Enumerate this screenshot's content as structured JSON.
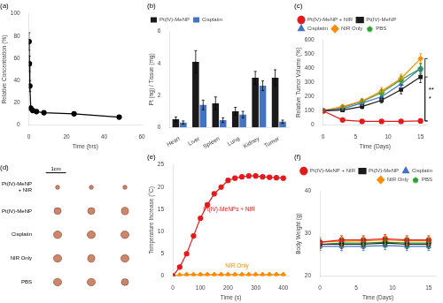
{
  "chart_data": [
    {
      "type": "line",
      "title": "(a)",
      "xlabel": "Time (hrs)",
      "ylabel": "Relative Concentration (%)",
      "x": [
        0.083,
        0.25,
        0.5,
        1,
        2,
        4,
        8,
        24,
        48
      ],
      "values": [
        75,
        55,
        35,
        15,
        13,
        12,
        11,
        10,
        7
      ],
      "errors": [
        8,
        7,
        5,
        2,
        1.5,
        1.5,
        1.5,
        1.5,
        1.5
      ],
      "color": "black",
      "marker": "circle",
      "line_style": "solid",
      "xlim": [
        0,
        60
      ],
      "xticks": [
        0,
        20,
        40,
        60
      ],
      "ylim": [
        0,
        100
      ],
      "yticks": [
        0,
        20,
        40,
        60,
        80,
        100
      ],
      "grid": false
    },
    {
      "type": "bar",
      "title": "(b)",
      "ylabel": "Pt (ng) / Tissue (mg)",
      "categories": [
        "Heart",
        "Liver",
        "Spleen",
        "Lung",
        "Kidney",
        "Tumor"
      ],
      "series": [
        {
          "name": "Pt(IV)-MeNP",
          "color": "#1a1a1a",
          "values": [
            0.5,
            4.1,
            1.5,
            1.0,
            3.1,
            3.1
          ],
          "errors": [
            0.15,
            0.7,
            0.4,
            0.25,
            0.4,
            0.5
          ]
        },
        {
          "name": "Cisplatin",
          "color": "#4472c4",
          "values": [
            0.3,
            1.4,
            0.45,
            0.8,
            2.6,
            0.35
          ],
          "errors": [
            0.1,
            0.3,
            0.15,
            0.2,
            0.3,
            0.1
          ]
        }
      ],
      "ylim": [
        0,
        6
      ],
      "yticks": [
        0,
        2,
        4,
        6
      ],
      "legend": "upper left",
      "grid": false
    },
    {
      "type": "line",
      "title": "(c)",
      "xlabel": "Time (Days)",
      "ylabel": "Relative Tumor Volume (%)",
      "x": [
        0,
        3,
        6,
        9,
        12,
        15
      ],
      "series": [
        {
          "name": "Pt(IV)-MeNP + NIR",
          "color": "#e31a1c",
          "marker": "circle",
          "line_style": "solid",
          "values": [
            100,
            35,
            25,
            25,
            25,
            28
          ],
          "errors": [
            5,
            5,
            4,
            4,
            4,
            5
          ]
        },
        {
          "name": "Pt(IV)-MeNP",
          "color": "#1a1a1a",
          "marker": "square",
          "line_style": "solid",
          "values": [
            100,
            105,
            130,
            175,
            250,
            340
          ],
          "errors": [
            8,
            10,
            15,
            20,
            30,
            40
          ]
        },
        {
          "name": "Cisplatin",
          "color": "#4472c4",
          "marker": "triangle",
          "line_style": "solid",
          "values": [
            100,
            115,
            155,
            200,
            290,
            400
          ],
          "errors": [
            8,
            12,
            18,
            22,
            28,
            35
          ]
        },
        {
          "name": "NIR Only",
          "color": "#ff8c00",
          "marker": "diamond",
          "line_style": "solid",
          "values": [
            100,
            130,
            170,
            240,
            330,
            470
          ],
          "errors": [
            8,
            12,
            18,
            25,
            30,
            35
          ]
        },
        {
          "name": "PBS",
          "color": "#2ca02c",
          "marker": "pentagon",
          "line_style": "solid",
          "values": [
            100,
            125,
            165,
            230,
            320,
            400
          ],
          "errors": [
            8,
            12,
            18,
            22,
            28,
            35
          ]
        }
      ],
      "annotations": [
        {
          "text": "*",
          "series": [
            "Pt(IV)-MeNP + NIR",
            "Pt(IV)-MeNP"
          ]
        },
        {
          "text": "**",
          "series": [
            "Pt(IV)-MeNP + NIR",
            "NIR Only"
          ]
        }
      ],
      "xlim": [
        0,
        16
      ],
      "xticks": [
        0,
        5,
        10,
        15
      ],
      "ylim": [
        0,
        600
      ],
      "yticks": [
        0,
        100,
        200,
        300,
        400,
        500,
        600
      ],
      "legend": "upper left",
      "grid": false
    },
    {
      "type": "image",
      "title": "(d)",
      "categories": [
        "Pt(IV)-MeNP\n+ NIR",
        "Pt(IV)-MeNP",
        "Cisplatin",
        "NIR Only",
        "PBS"
      ],
      "sizes": [
        [
          [
            0.04,
            0.035
          ],
          [
            0.04,
            0.035
          ],
          [
            0.04,
            0.035
          ]
        ],
        [
          [
            0.07,
            0.056
          ],
          [
            0.07,
            0.056
          ],
          [
            0.07,
            0.063
          ]
        ],
        [
          [
            0.08,
            0.063
          ],
          [
            0.08,
            0.063
          ],
          [
            0.08,
            0.063
          ]
        ],
        [
          [
            0.08,
            0.063
          ],
          [
            0.07,
            0.063
          ],
          [
            0.08,
            0.063
          ]
        ],
        [
          [
            0.08,
            0.063
          ],
          [
            0.08,
            0.063
          ],
          [
            0.07,
            0.056
          ]
        ]
      ],
      "color": "#c47a5a",
      "annotations": [
        {
          "text": "1cm"
        }
      ]
    },
    {
      "type": "line",
      "title": "(e)",
      "xlabel": "Time (s)",
      "ylabel": "Temperature Increase (°C)",
      "x": [
        0,
        25,
        50,
        75,
        100,
        125,
        150,
        175,
        200,
        225,
        250,
        275,
        300,
        325,
        350,
        375,
        400
      ],
      "series": [
        {
          "name": "Pt(IV)-MeNPs + NIR",
          "color": "#e31a1c",
          "marker": "circle",
          "line_style": "solid",
          "values": [
            0,
            2,
            5,
            9,
            13,
            16,
            18.5,
            20,
            21.5,
            22,
            22.3,
            22.5,
            22.5,
            22.3,
            22.2,
            22.1,
            22.0
          ]
        },
        {
          "name": "NIR Only",
          "color": "#ff8c00",
          "marker": "diamond",
          "line_style": "solid",
          "values": [
            0,
            0.2,
            0.3,
            0.3,
            0.3,
            0.3,
            0.3,
            0.3,
            0.3,
            0.3,
            0.3,
            0.3,
            0.3,
            0.3,
            0.3,
            0.3,
            0.3
          ]
        }
      ],
      "annotations": [
        {
          "text": "Pt(IV)-MeNPs + NIR",
          "x": 110,
          "y": 14.5,
          "color": "#e31a1c"
        },
        {
          "text": "NIR Only",
          "x": 190,
          "y": 1.8,
          "color": "#ff8c00"
        }
      ],
      "xlim": [
        0,
        420
      ],
      "xticks": [
        0,
        100,
        200,
        300,
        400
      ],
      "ylim": [
        0,
        25
      ],
      "yticks": [
        0,
        5,
        10,
        15,
        20,
        25
      ],
      "grid": false
    },
    {
      "type": "line",
      "title": "(f)",
      "xlabel": "Time (Days)",
      "ylabel": "Body Weight (g)",
      "x": [
        0,
        3,
        6,
        9,
        12,
        15
      ],
      "series": [
        {
          "name": "Pt(IV)-MeNP + NIR",
          "color": "#e31a1c",
          "marker": "circle",
          "line_style": "solid",
          "values": [
            28.0,
            28.5,
            28.5,
            28.8,
            28.5,
            28.5
          ],
          "errors": [
            1.0,
            1.0,
            1.0,
            1.0,
            1.0,
            1.0
          ]
        },
        {
          "name": "Pt(IV)-MeNP",
          "color": "#1a1a1a",
          "marker": "square",
          "line_style": "solid",
          "values": [
            27.5,
            27.5,
            27.5,
            27.8,
            27.5,
            27.5
          ],
          "errors": [
            1.0,
            1.0,
            1.0,
            1.0,
            1.0,
            1.0
          ]
        },
        {
          "name": "Cisplatin",
          "color": "#4472c4",
          "marker": "triangle",
          "line_style": "solid",
          "values": [
            27.0,
            27.0,
            27.0,
            27.2,
            27.0,
            27.0
          ],
          "errors": [
            1.0,
            1.0,
            1.0,
            1.0,
            1.0,
            1.0
          ]
        },
        {
          "name": "NIR Only",
          "color": "#ff8c00",
          "marker": "diamond",
          "line_style": "solid",
          "values": [
            28.0,
            28.2,
            28.3,
            28.5,
            28.3,
            28.3
          ],
          "errors": [
            1.0,
            1.0,
            1.0,
            1.0,
            1.0,
            1.0
          ]
        },
        {
          "name": "PBS",
          "color": "#2ca02c",
          "marker": "pentagon",
          "line_style": "solid",
          "values": [
            27.5,
            27.8,
            27.8,
            28.0,
            27.8,
            27.8
          ],
          "errors": [
            1.0,
            1.0,
            1.0,
            1.0,
            1.0,
            1.0
          ]
        }
      ],
      "xlim": [
        0,
        16
      ],
      "xticks": [
        0,
        5,
        10,
        15
      ],
      "ylim": [
        20,
        40
      ],
      "yticks": [
        20,
        30,
        40
      ],
      "legend": "upper right",
      "grid": false
    }
  ]
}
